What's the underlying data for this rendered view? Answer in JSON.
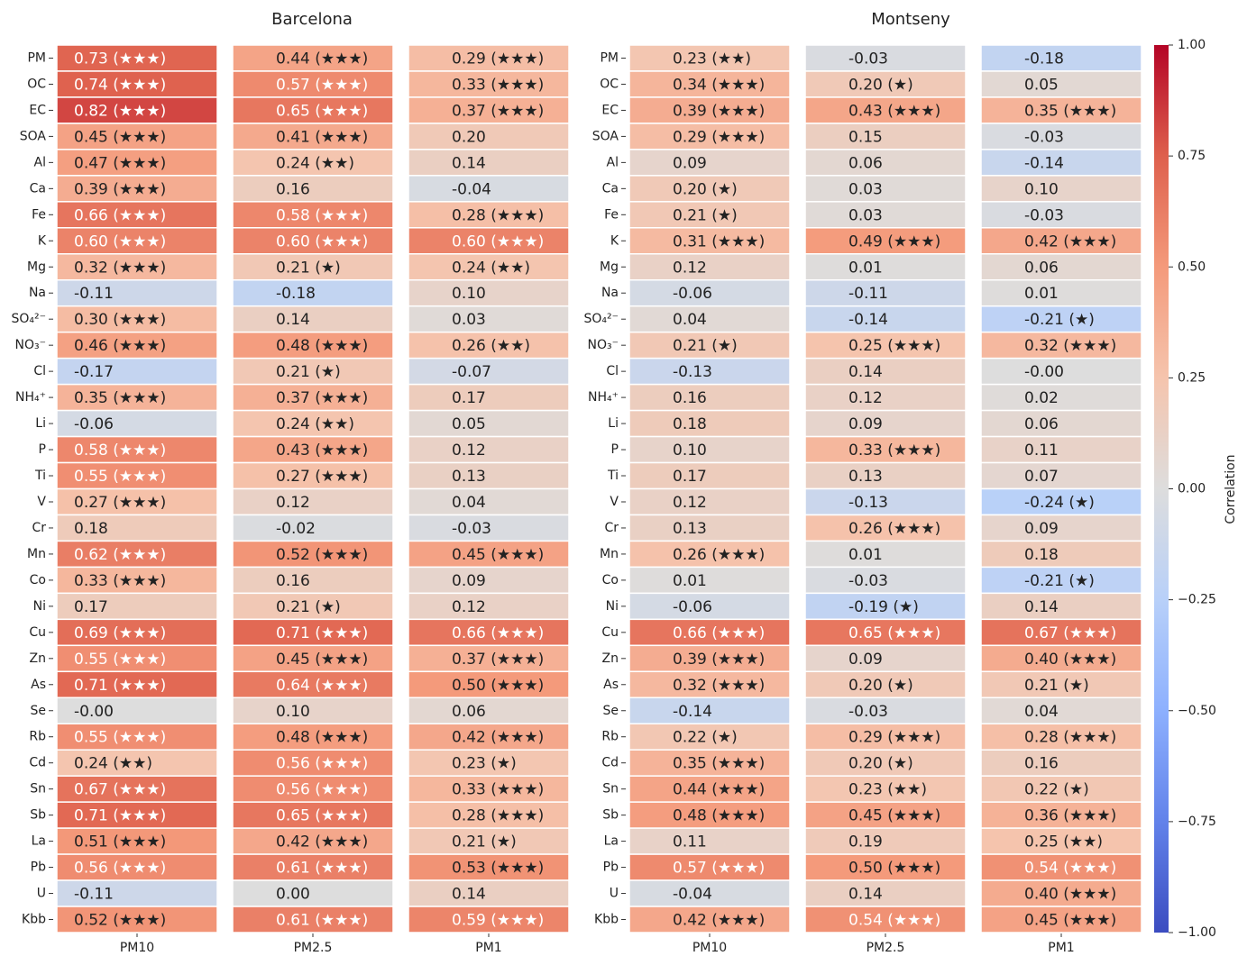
{
  "chart_data": [
    {
      "type": "heatmap",
      "title": "Barcelona",
      "colormap": "coolwarm",
      "rows": [
        "PM",
        "OC",
        "EC",
        "SOA",
        "Al",
        "Ca",
        "Fe",
        "K",
        "Mg",
        "Na",
        "SO₄²⁻",
        "NO₃⁻",
        "Cl",
        "NH₄⁺",
        "Li",
        "P",
        "Ti",
        "V",
        "Cr",
        "Mn",
        "Co",
        "Ni",
        "Cu",
        "Zn",
        "As",
        "Se",
        "Rb",
        "Cd",
        "Sn",
        "Sb",
        "La",
        "Pb",
        "U",
        "Kbb"
      ],
      "columns": [
        "PM10",
        "PM2.5",
        "PM1"
      ],
      "values": [
        [
          0.73,
          0.44,
          0.29
        ],
        [
          0.74,
          0.57,
          0.33
        ],
        [
          0.82,
          0.65,
          0.37
        ],
        [
          0.45,
          0.41,
          0.2
        ],
        [
          0.47,
          0.24,
          0.14
        ],
        [
          0.39,
          0.16,
          -0.04
        ],
        [
          0.66,
          0.58,
          0.28
        ],
        [
          0.6,
          0.6,
          0.6
        ],
        [
          0.32,
          0.21,
          0.24
        ],
        [
          -0.11,
          -0.18,
          0.1
        ],
        [
          0.3,
          0.14,
          0.03
        ],
        [
          0.46,
          0.48,
          0.26
        ],
        [
          -0.17,
          0.21,
          -0.07
        ],
        [
          0.35,
          0.37,
          0.17
        ],
        [
          -0.06,
          0.24,
          0.05
        ],
        [
          0.58,
          0.43,
          0.12
        ],
        [
          0.55,
          0.27,
          0.13
        ],
        [
          0.27,
          0.12,
          0.04
        ],
        [
          0.18,
          -0.02,
          -0.03
        ],
        [
          0.62,
          0.52,
          0.45
        ],
        [
          0.33,
          0.16,
          0.09
        ],
        [
          0.17,
          0.21,
          0.12
        ],
        [
          0.69,
          0.71,
          0.66
        ],
        [
          0.55,
          0.45,
          0.37
        ],
        [
          0.71,
          0.64,
          0.5
        ],
        [
          0,
          0.1,
          0.06
        ],
        [
          0.55,
          0.48,
          0.42
        ],
        [
          0.24,
          0.56,
          0.23
        ],
        [
          0.67,
          0.56,
          0.33
        ],
        [
          0.71,
          0.65,
          0.28
        ],
        [
          0.51,
          0.42,
          0.21
        ],
        [
          0.56,
          0.61,
          0.53
        ],
        [
          -0.11,
          0,
          0.14
        ],
        [
          0.52,
          0.61,
          0.59
        ]
      ],
      "value_labels": [
        [
          "0.73 (★★★)",
          "0.44 (★★★)",
          "0.29 (★★★)"
        ],
        [
          "0.74 (★★★)",
          "0.57 (★★★)",
          "0.33 (★★★)"
        ],
        [
          "0.82 (★★★)",
          "0.65 (★★★)",
          "0.37 (★★★)"
        ],
        [
          "0.45 (★★★)",
          "0.41 (★★★)",
          "0.20"
        ],
        [
          "0.47 (★★★)",
          "0.24 (★★)",
          "0.14"
        ],
        [
          "0.39 (★★★)",
          "0.16",
          "-0.04"
        ],
        [
          "0.66 (★★★)",
          "0.58 (★★★)",
          "0.28 (★★★)"
        ],
        [
          "0.60 (★★★)",
          "0.60 (★★★)",
          "0.60 (★★★)"
        ],
        [
          "0.32 (★★★)",
          "0.21 (★)",
          "0.24 (★★)"
        ],
        [
          "-0.11",
          "-0.18",
          "0.10"
        ],
        [
          "0.30 (★★★)",
          "0.14",
          "0.03"
        ],
        [
          "0.46 (★★★)",
          "0.48 (★★★)",
          "0.26 (★★)"
        ],
        [
          "-0.17",
          "0.21 (★)",
          "-0.07"
        ],
        [
          "0.35 (★★★)",
          "0.37 (★★★)",
          "0.17"
        ],
        [
          "-0.06",
          "0.24 (★★)",
          "0.05"
        ],
        [
          "0.58 (★★★)",
          "0.43 (★★★)",
          "0.12"
        ],
        [
          "0.55 (★★★)",
          "0.27 (★★★)",
          "0.13"
        ],
        [
          "0.27 (★★★)",
          "0.12",
          "0.04"
        ],
        [
          "0.18",
          "-0.02",
          "-0.03"
        ],
        [
          "0.62 (★★★)",
          "0.52 (★★★)",
          "0.45 (★★★)"
        ],
        [
          "0.33 (★★★)",
          "0.16",
          "0.09"
        ],
        [
          "0.17",
          "0.21 (★)",
          "0.12"
        ],
        [
          "0.69 (★★★)",
          "0.71 (★★★)",
          "0.66 (★★★)"
        ],
        [
          "0.55 (★★★)",
          "0.45 (★★★)",
          "0.37 (★★★)"
        ],
        [
          "0.71 (★★★)",
          "0.64 (★★★)",
          "0.50 (★★★)"
        ],
        [
          "-0.00",
          "0.10",
          "0.06"
        ],
        [
          "0.55 (★★★)",
          "0.48 (★★★)",
          "0.42 (★★★)"
        ],
        [
          "0.24 (★★)",
          "0.56 (★★★)",
          "0.23 (★)"
        ],
        [
          "0.67 (★★★)",
          "0.56 (★★★)",
          "0.33 (★★★)"
        ],
        [
          "0.71 (★★★)",
          "0.65 (★★★)",
          "0.28 (★★★)"
        ],
        [
          "0.51 (★★★)",
          "0.42 (★★★)",
          "0.21 (★)"
        ],
        [
          "0.56 (★★★)",
          "0.61 (★★★)",
          "0.53 (★★★)"
        ],
        [
          "-0.11",
          "0.00",
          "0.14"
        ],
        [
          "0.52 (★★★)",
          "0.61 (★★★)",
          "0.59 (★★★)"
        ]
      ]
    },
    {
      "type": "heatmap",
      "title": "Montseny",
      "colormap": "coolwarm",
      "rows": [
        "PM",
        "OC",
        "EC",
        "SOA",
        "Al",
        "Ca",
        "Fe",
        "K",
        "Mg",
        "Na",
        "SO₄²⁻",
        "NO₃⁻",
        "Cl",
        "NH₄⁺",
        "Li",
        "P",
        "Ti",
        "V",
        "Cr",
        "Mn",
        "Co",
        "Ni",
        "Cu",
        "Zn",
        "As",
        "Se",
        "Rb",
        "Cd",
        "Sn",
        "Sb",
        "La",
        "Pb",
        "U",
        "Kbb"
      ],
      "columns": [
        "PM10",
        "PM2.5",
        "PM1"
      ],
      "values": [
        [
          0.23,
          -0.03,
          -0.18
        ],
        [
          0.34,
          0.2,
          0.05
        ],
        [
          0.39,
          0.43,
          0.35
        ],
        [
          0.29,
          0.15,
          -0.03
        ],
        [
          0.09,
          0.06,
          -0.14
        ],
        [
          0.2,
          0.03,
          0.1
        ],
        [
          0.21,
          0.03,
          -0.03
        ],
        [
          0.31,
          0.49,
          0.42
        ],
        [
          0.12,
          0.01,
          0.06
        ],
        [
          -0.06,
          -0.11,
          0.01
        ],
        [
          0.04,
          -0.14,
          -0.21
        ],
        [
          0.21,
          0.25,
          0.32
        ],
        [
          -0.13,
          0.14,
          0
        ],
        [
          0.16,
          0.12,
          0.02
        ],
        [
          0.18,
          0.09,
          0.06
        ],
        [
          0.1,
          0.33,
          0.11
        ],
        [
          0.17,
          0.13,
          0.07
        ],
        [
          0.12,
          -0.13,
          -0.24
        ],
        [
          0.13,
          0.26,
          0.09
        ],
        [
          0.26,
          0.01,
          0.18
        ],
        [
          0.01,
          -0.03,
          -0.21
        ],
        [
          -0.06,
          -0.19,
          0.14
        ],
        [
          0.66,
          0.65,
          0.67
        ],
        [
          0.39,
          0.09,
          0.4
        ],
        [
          0.32,
          0.2,
          0.21
        ],
        [
          -0.14,
          -0.03,
          0.04
        ],
        [
          0.22,
          0.29,
          0.28
        ],
        [
          0.35,
          0.2,
          0.16
        ],
        [
          0.44,
          0.23,
          0.22
        ],
        [
          0.48,
          0.45,
          0.36
        ],
        [
          0.11,
          0.19,
          0.25
        ],
        [
          0.57,
          0.5,
          0.54
        ],
        [
          -0.04,
          0.14,
          0.4
        ],
        [
          0.42,
          0.54,
          0.45
        ]
      ],
      "value_labels": [
        [
          "0.23 (★★)",
          "-0.03",
          "-0.18"
        ],
        [
          "0.34 (★★★)",
          "0.20 (★)",
          "0.05"
        ],
        [
          "0.39 (★★★)",
          "0.43 (★★★)",
          "0.35 (★★★)"
        ],
        [
          "0.29 (★★★)",
          "0.15",
          "-0.03"
        ],
        [
          "0.09",
          "0.06",
          "-0.14"
        ],
        [
          "0.20 (★)",
          "0.03",
          "0.10"
        ],
        [
          "0.21 (★)",
          "0.03",
          "-0.03"
        ],
        [
          "0.31 (★★★)",
          "0.49 (★★★)",
          "0.42 (★★★)"
        ],
        [
          "0.12",
          "0.01",
          "0.06"
        ],
        [
          "-0.06",
          "-0.11",
          "0.01"
        ],
        [
          "0.04",
          "-0.14",
          "-0.21 (★)"
        ],
        [
          "0.21 (★)",
          "0.25 (★★★)",
          "0.32 (★★★)"
        ],
        [
          "-0.13",
          "0.14",
          "-0.00"
        ],
        [
          "0.16",
          "0.12",
          "0.02"
        ],
        [
          "0.18",
          "0.09",
          "0.06"
        ],
        [
          "0.10",
          "0.33 (★★★)",
          "0.11"
        ],
        [
          "0.17",
          "0.13",
          "0.07"
        ],
        [
          "0.12",
          "-0.13",
          "-0.24 (★)"
        ],
        [
          "0.13",
          "0.26 (★★★)",
          "0.09"
        ],
        [
          "0.26 (★★★)",
          "0.01",
          "0.18"
        ],
        [
          "0.01",
          "-0.03",
          "-0.21 (★)"
        ],
        [
          "-0.06",
          "-0.19 (★)",
          "0.14"
        ],
        [
          "0.66 (★★★)",
          "0.65 (★★★)",
          "0.67 (★★★)"
        ],
        [
          "0.39 (★★★)",
          "0.09",
          "0.40 (★★★)"
        ],
        [
          "0.32 (★★★)",
          "0.20 (★)",
          "0.21 (★)"
        ],
        [
          "-0.14",
          "-0.03",
          "0.04"
        ],
        [
          "0.22 (★)",
          "0.29 (★★★)",
          "0.28 (★★★)"
        ],
        [
          "0.35 (★★★)",
          "0.20 (★)",
          "0.16"
        ],
        [
          "0.44 (★★★)",
          "0.23 (★★)",
          "0.22 (★)"
        ],
        [
          "0.48 (★★★)",
          "0.45 (★★★)",
          "0.36 (★★★)"
        ],
        [
          "0.11",
          "0.19",
          "0.25 (★★)"
        ],
        [
          "0.57 (★★★)",
          "0.50 (★★★)",
          "0.54 (★★★)"
        ],
        [
          "-0.04",
          "0.14",
          "0.40 (★★★)"
        ],
        [
          "0.42 (★★★)",
          "0.54 (★★★)",
          "0.45 (★★★)"
        ]
      ],
      "colorbar": {
        "label": "Correlation",
        "lim": [
          -1,
          1
        ],
        "ticks": [
          {
            "value": 1,
            "label": "1.00"
          },
          {
            "value": 0.75,
            "label": "0.75"
          },
          {
            "value": 0.5,
            "label": "0.50"
          },
          {
            "value": 0.25,
            "label": "0.25"
          },
          {
            "value": 0,
            "label": "0.00"
          },
          {
            "value": -0.25,
            "label": "−0.25"
          },
          {
            "value": -0.5,
            "label": "−0.50"
          },
          {
            "value": -0.75,
            "label": "−0.75"
          },
          {
            "value": -1,
            "label": "−1.00"
          }
        ]
      }
    }
  ]
}
